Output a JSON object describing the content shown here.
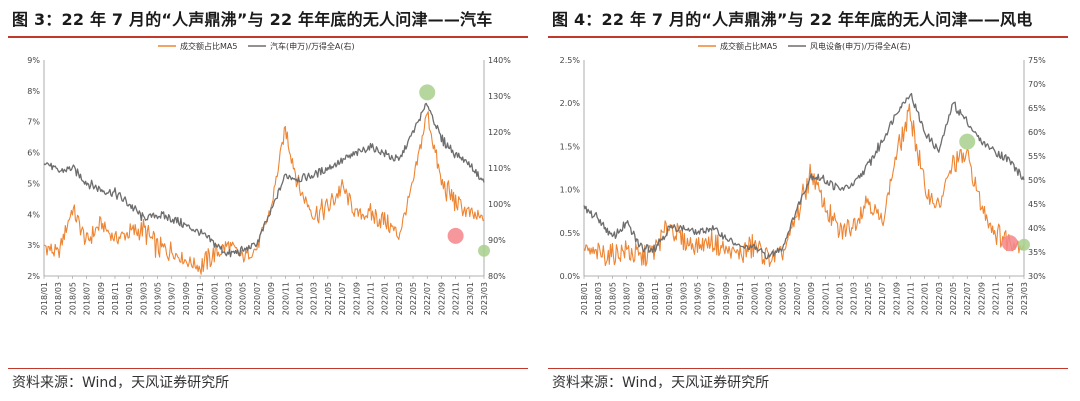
{
  "panels": [
    {
      "title": "图 3：22 年 7 月的“人声鼎沸”与 22 年年底的无人问津——汽车",
      "source": "资料来源：Wind，天风证券研究所"
    },
    {
      "title": "图 4：22 年 7 月的“人声鼎沸”与 22 年年底的无人问津——风电",
      "source": "资料来源：Wind，天风证券研究所"
    }
  ],
  "chart_data": [
    {
      "type": "line",
      "title": "",
      "x": [
        "2018/01",
        "2018/03",
        "2018/05",
        "2018/07",
        "2018/09",
        "2018/11",
        "2019/01",
        "2019/03",
        "2019/05",
        "2019/07",
        "2019/09",
        "2019/11",
        "2020/01",
        "2020/03",
        "2020/05",
        "2020/07",
        "2020/09",
        "2020/11",
        "2021/01",
        "2021/03",
        "2021/05",
        "2021/07",
        "2021/09",
        "2021/11",
        "2022/01",
        "2022/03",
        "2022/05",
        "2022/07",
        "2022/09",
        "2022/11",
        "2023/01",
        "2023/03"
      ],
      "y_left": {
        "min": 2,
        "max": 9,
        "ticks": [
          2,
          3,
          4,
          5,
          6,
          7,
          8,
          9
        ],
        "unit": "%"
      },
      "y_right": {
        "min": 80,
        "max": 140,
        "ticks": [
          80,
          90,
          100,
          110,
          120,
          130,
          140
        ],
        "unit": "%"
      },
      "legend": [
        "成交额占比MA5",
        "汽车(申万)/万得全A(右)"
      ],
      "legend_placement": "top-center",
      "grid": false,
      "colors": {
        "left_series": "#ee8533",
        "right_series": "#6d6d6d",
        "highlight_high": "#a8d08d",
        "highlight_low": "#f4868a"
      },
      "series": [
        {
          "name": "成交额占比MA5",
          "axis": "left",
          "values": [
            3.0,
            2.7,
            4.2,
            3.1,
            3.7,
            3.2,
            3.4,
            3.5,
            2.9,
            2.8,
            2.5,
            2.3,
            2.7,
            3.0,
            2.6,
            2.9,
            4.2,
            6.8,
            4.8,
            4.0,
            4.2,
            4.9,
            4.0,
            4.0,
            3.8,
            3.3,
            5.0,
            7.3,
            5.0,
            4.4,
            4.0,
            3.8
          ]
        },
        {
          "name": "汽车(申万)/万得全A(右)",
          "axis": "right",
          "values": [
            112,
            109,
            110,
            106,
            104,
            103,
            100,
            96,
            97,
            96,
            94,
            92,
            89,
            86,
            87,
            89,
            98,
            108,
            107,
            108,
            110,
            112,
            114,
            116,
            114,
            112,
            120,
            128,
            118,
            114,
            111,
            106
          ]
        }
      ],
      "annotations": [
        {
          "label": "highlight-high",
          "x": "2022/07",
          "y_right": 131
        },
        {
          "label": "highlight-low-left",
          "x": "2022/11",
          "y_left": 3.3
        },
        {
          "label": "highlight-low-right",
          "x": "2023/03",
          "y_right": 87
        }
      ]
    },
    {
      "type": "line",
      "title": "",
      "x": [
        "2018/01",
        "2018/03",
        "2018/05",
        "2018/07",
        "2018/09",
        "2018/11",
        "2019/01",
        "2019/03",
        "2019/05",
        "2019/07",
        "2019/09",
        "2019/11",
        "2020/01",
        "2020/03",
        "2020/05",
        "2020/07",
        "2020/09",
        "2020/11",
        "2021/01",
        "2021/03",
        "2021/05",
        "2021/07",
        "2021/09",
        "2021/11",
        "2022/01",
        "2022/03",
        "2022/05",
        "2022/07",
        "2022/09",
        "2022/11",
        "2023/01",
        "2023/03"
      ],
      "y_left": {
        "min": 0.0,
        "max": 2.5,
        "ticks": [
          0.0,
          0.5,
          1.0,
          1.5,
          2.0,
          2.5
        ],
        "unit": "%"
      },
      "y_right": {
        "min": 30,
        "max": 75,
        "ticks": [
          30,
          35,
          40,
          45,
          50,
          55,
          60,
          65,
          70,
          75
        ],
        "unit": "%"
      },
      "legend": [
        "成交额占比MA5",
        "风电设备(申万)/万得全A(右)"
      ],
      "legend_placement": "top-center",
      "grid": false,
      "colors": {
        "left_series": "#ee8533",
        "right_series": "#6d6d6d",
        "highlight_high": "#a8d08d",
        "highlight_low": "#f4868a"
      },
      "series": [
        {
          "name": "成交额占比MA5",
          "axis": "left",
          "values": [
            0.3,
            0.25,
            0.25,
            0.3,
            0.2,
            0.3,
            0.6,
            0.4,
            0.35,
            0.4,
            0.3,
            0.25,
            0.35,
            0.2,
            0.25,
            0.7,
            1.2,
            0.8,
            0.5,
            0.6,
            0.9,
            0.6,
            1.4,
            1.9,
            1.0,
            0.8,
            1.3,
            1.4,
            0.8,
            0.5,
            0.4,
            0.35
          ]
        },
        {
          "name": "风电设备(申万)/万得全A(右)",
          "axis": "right",
          "values": [
            44,
            42,
            38,
            41,
            36,
            36,
            40,
            40,
            39,
            40,
            38,
            36,
            36,
            34,
            36,
            44,
            51,
            50,
            48,
            49,
            53,
            58,
            64,
            68,
            60,
            56,
            66,
            62,
            58,
            56,
            54,
            50
          ]
        }
      ],
      "annotations": [
        {
          "label": "highlight-high",
          "x": "2022/07",
          "y_right": 58
        },
        {
          "label": "highlight-low-left",
          "x": "2023/01",
          "y_left": 0.38
        },
        {
          "label": "highlight-low-right",
          "x": "2023/03",
          "y_right": 36.5
        }
      ]
    }
  ]
}
